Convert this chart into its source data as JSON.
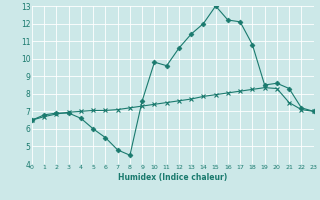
{
  "xlabel": "Humidex (Indice chaleur)",
  "bg_color": "#cce8e8",
  "line_color": "#1a7a6e",
  "xlim": [
    0,
    23
  ],
  "ylim": [
    4,
    13
  ],
  "xticks": [
    0,
    1,
    2,
    3,
    4,
    5,
    6,
    7,
    8,
    9,
    10,
    11,
    12,
    13,
    14,
    15,
    16,
    17,
    18,
    19,
    20,
    21,
    22,
    23
  ],
  "yticks": [
    4,
    5,
    6,
    7,
    8,
    9,
    10,
    11,
    12,
    13
  ],
  "line1_x": [
    0,
    1,
    2,
    3,
    4,
    5,
    6,
    7,
    8,
    9,
    10,
    11,
    12,
    13,
    14,
    15,
    16,
    17,
    18,
    19,
    20,
    21,
    22,
    23
  ],
  "line1_y": [
    6.5,
    6.8,
    6.9,
    6.9,
    6.6,
    6.0,
    5.5,
    4.8,
    4.5,
    7.6,
    9.8,
    9.6,
    10.6,
    11.4,
    12.0,
    13.0,
    12.2,
    12.1,
    10.8,
    8.5,
    8.6,
    8.3,
    7.2,
    7.0
  ],
  "line2_x": [
    0,
    1,
    2,
    3,
    4,
    5,
    6,
    7,
    8,
    9,
    10,
    11,
    12,
    13,
    14,
    15,
    16,
    17,
    18,
    19,
    20,
    21,
    22,
    23
  ],
  "line2_y": [
    6.5,
    6.7,
    6.85,
    6.95,
    7.0,
    7.05,
    7.05,
    7.1,
    7.2,
    7.3,
    7.4,
    7.5,
    7.6,
    7.7,
    7.85,
    7.95,
    8.05,
    8.15,
    8.25,
    8.35,
    8.3,
    7.5,
    7.1,
    7.0
  ]
}
